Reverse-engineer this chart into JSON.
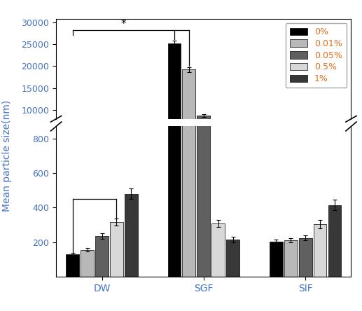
{
  "groups": [
    "DW",
    "SGF",
    "SIF"
  ],
  "series_labels": [
    "0%",
    "0.01%",
    "0.05%",
    "0.5%",
    "1%"
  ],
  "bar_colors": [
    "#000000",
    "#b8b8b8",
    "#606060",
    "#d8d8d8",
    "#383838"
  ],
  "bar_edgecolor": "#000000",
  "values": {
    "DW": [
      130,
      155,
      235,
      315,
      480
    ],
    "SGF": [
      25200,
      19200,
      8700,
      310,
      215
    ],
    "SIF": [
      205,
      210,
      225,
      305,
      415
    ]
  },
  "errors": {
    "DW": [
      8,
      10,
      15,
      20,
      30
    ],
    "SGF": [
      600,
      500,
      300,
      20,
      15
    ],
    "SIF": [
      10,
      12,
      15,
      25,
      30
    ]
  },
  "ylabel": "Mean particle size(nm)",
  "xlabel_color": "#4472c4",
  "ylabel_color": "#4472c4",
  "legend_text_color": "#e07020",
  "axis_label_fontsize": 10,
  "tick_fontsize": 9,
  "legend_fontsize": 9,
  "ylim_lower": [
    0,
    870
  ],
  "ylim_upper": [
    8000,
    30800
  ],
  "upper_ticks": [
    10000,
    15000,
    20000,
    25000,
    30000
  ],
  "lower_ticks": [
    200,
    400,
    600,
    800
  ],
  "stat_annotation": "*",
  "group_width": 0.72
}
